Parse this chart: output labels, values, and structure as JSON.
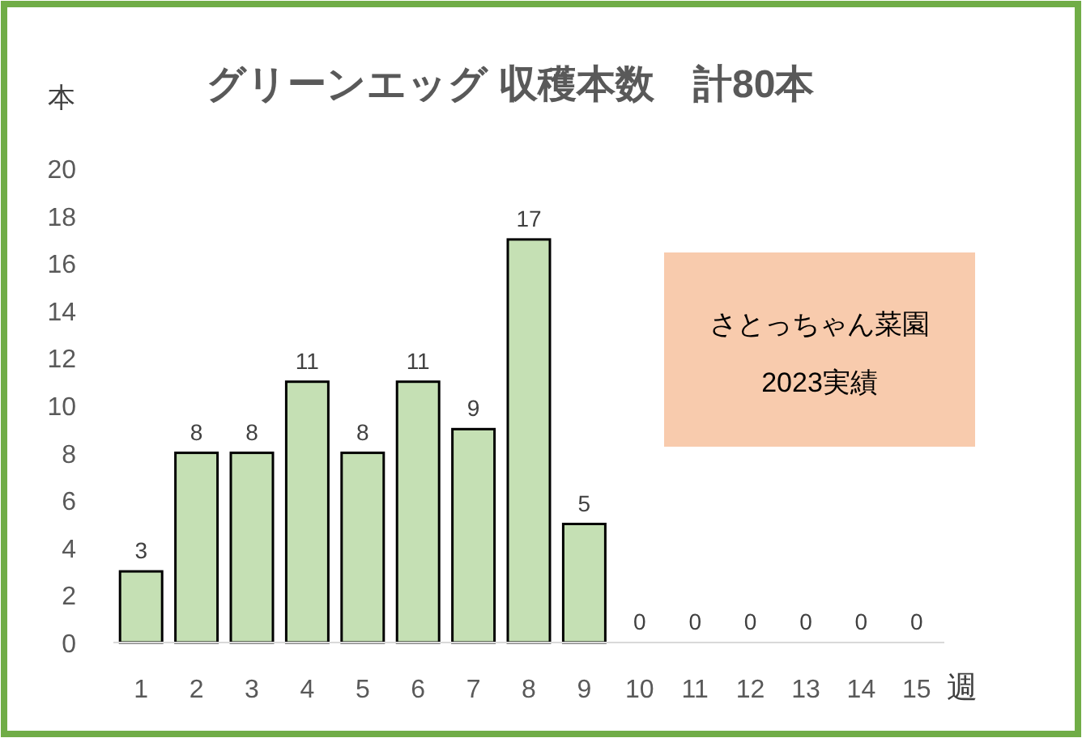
{
  "chart_data": {
    "type": "bar",
    "title": "グリーンエッグ 収穫本数　計80本",
    "categories": [
      "1",
      "2",
      "3",
      "4",
      "5",
      "6",
      "7",
      "8",
      "9",
      "10",
      "11",
      "12",
      "13",
      "14",
      "15"
    ],
    "values": [
      3,
      8,
      8,
      11,
      8,
      11,
      9,
      17,
      5,
      0,
      0,
      0,
      0,
      0,
      0
    ],
    "color": "#c5e0b4",
    "ylim": [
      0,
      20
    ],
    "yticks": [
      0,
      2,
      4,
      6,
      8,
      10,
      12,
      14,
      16,
      18,
      20
    ],
    "ylabel": "本",
    "xlabel": "週",
    "data_labels": true,
    "grid": false,
    "annotations": [
      "さとっちゃん菜園\n2023実績"
    ]
  }
}
